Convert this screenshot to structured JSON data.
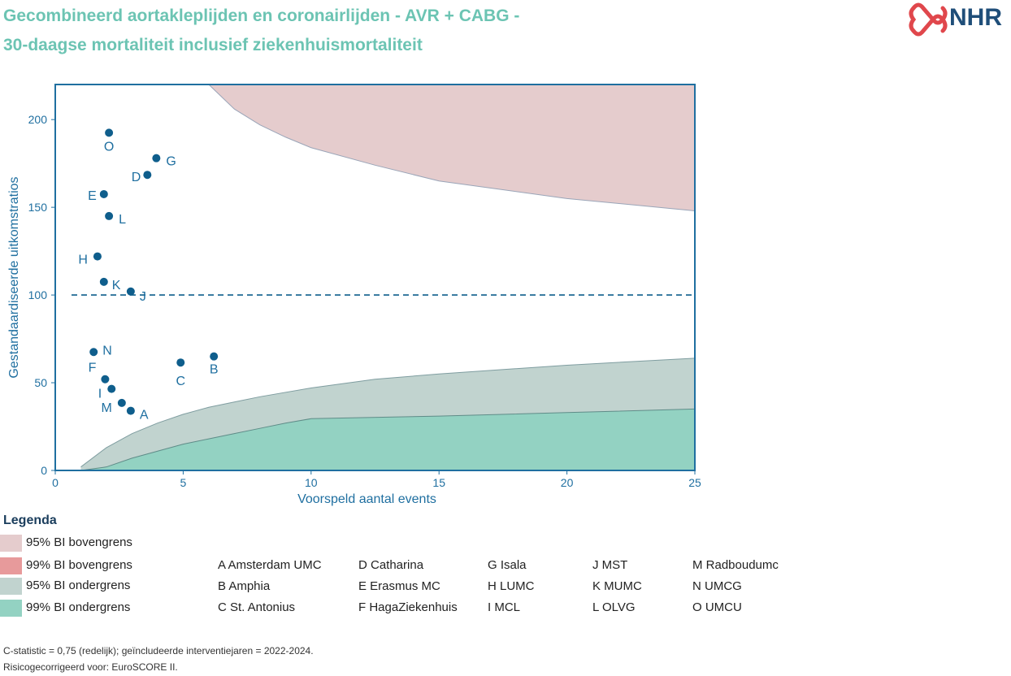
{
  "header": {
    "title_line1": "Gecombineerd aortakleplijden en coronairlijden - AVR + CABG -",
    "title_line2": "30-daagse mortaliteit inclusief ziekenhuismortaliteit",
    "logo_text": "NHR"
  },
  "colors": {
    "title": "#6cc4b3",
    "axis": "#1f6fa0",
    "marker": "#0f5e8c",
    "band_95_upper": "#e5cccd",
    "band_99_upper": "#e79a9b",
    "band_95_lower": "#c1d3cf",
    "band_99_lower": "#93d2c2",
    "logo_red": "#e0474c"
  },
  "chart_data": {
    "type": "scatter",
    "xlabel": "Voorspeld aantal events",
    "ylabel": "Gestandaardiseerde uitkomstratios",
    "xlim": [
      0,
      25
    ],
    "ylim": [
      0,
      220
    ],
    "xticks": [
      0,
      5,
      10,
      15,
      20,
      25
    ],
    "yticks": [
      0,
      50,
      100,
      150,
      200
    ],
    "reference_line": 100,
    "grid": false,
    "points": [
      {
        "label": "O",
        "x": 2.1,
        "y": 192.5
      },
      {
        "label": "G",
        "x": 3.95,
        "y": 178
      },
      {
        "label": "D",
        "x": 3.6,
        "y": 168.5
      },
      {
        "label": "E",
        "x": 1.9,
        "y": 157.5
      },
      {
        "label": "L",
        "x": 2.1,
        "y": 145
      },
      {
        "label": "H",
        "x": 1.65,
        "y": 122
      },
      {
        "label": "K",
        "x": 1.9,
        "y": 107.5
      },
      {
        "label": "J",
        "x": 2.95,
        "y": 102
      },
      {
        "label": "N",
        "x": 1.5,
        "y": 67.5
      },
      {
        "label": "C",
        "x": 4.9,
        "y": 61.5
      },
      {
        "label": "B",
        "x": 6.2,
        "y": 65
      },
      {
        "label": "F",
        "x": 1.95,
        "y": 52
      },
      {
        "label": "I",
        "x": 2.2,
        "y": 46.5
      },
      {
        "label": "M",
        "x": 2.6,
        "y": 38.5
      },
      {
        "label": "A",
        "x": 2.95,
        "y": 34
      }
    ],
    "bands": {
      "upper_95": {
        "x": [
          6.0,
          7.0,
          8.0,
          9.0,
          10.0,
          12.5,
          15.0,
          20.0,
          25.0
        ],
        "y": [
          220,
          206,
          197,
          190,
          184,
          174,
          165,
          155,
          148
        ]
      },
      "lower_95": {
        "x": [
          1.0,
          2.0,
          3.0,
          4.0,
          5.0,
          6.0,
          7.0,
          8.0,
          10.0,
          12.5,
          15.0,
          20.0,
          25.0
        ],
        "y": [
          2,
          13,
          21,
          27,
          32,
          36,
          39,
          42,
          47,
          52,
          55,
          60,
          64
        ]
      },
      "lower_99": {
        "x": [
          1.0,
          2.0,
          3.0,
          4.0,
          5.0,
          6.0,
          7.0,
          8.0,
          9.0,
          10.0,
          15.0,
          20.0,
          25.0
        ],
        "y": [
          0,
          2,
          7,
          11,
          15,
          18,
          21,
          24,
          27,
          29.5,
          31,
          33,
          35
        ]
      }
    }
  },
  "legend": {
    "title": "Legenda",
    "items": [
      {
        "label": "95% BI bovengrens",
        "color": "#e5cccd"
      },
      {
        "label": "99% BI bovengrens",
        "color": "#e79a9b"
      },
      {
        "label": "95% BI ondergrens",
        "color": "#c1d3cf"
      },
      {
        "label": "99% BI ondergrens",
        "color": "#93d2c2"
      }
    ]
  },
  "hospitals": {
    "col1": [
      "A Amsterdam UMC",
      "B Amphia",
      "C St. Antonius"
    ],
    "col2": [
      "D Catharina",
      "E Erasmus MC",
      "F HagaZiekenhuis"
    ],
    "col3": [
      "G Isala",
      "H LUMC",
      "I MCL"
    ],
    "col4": [
      "J MST",
      "K MUMC",
      "L OLVG"
    ],
    "col5": [
      "M Radboudumc",
      "N UMCG",
      "O UMCU"
    ]
  },
  "footer": {
    "line1": "C-statistic =  0,75 (redelijk); geïncludeerde interventiejaren = 2022-2024.",
    "line2": "Risicogecorrigeerd voor: EuroSCORE II."
  }
}
